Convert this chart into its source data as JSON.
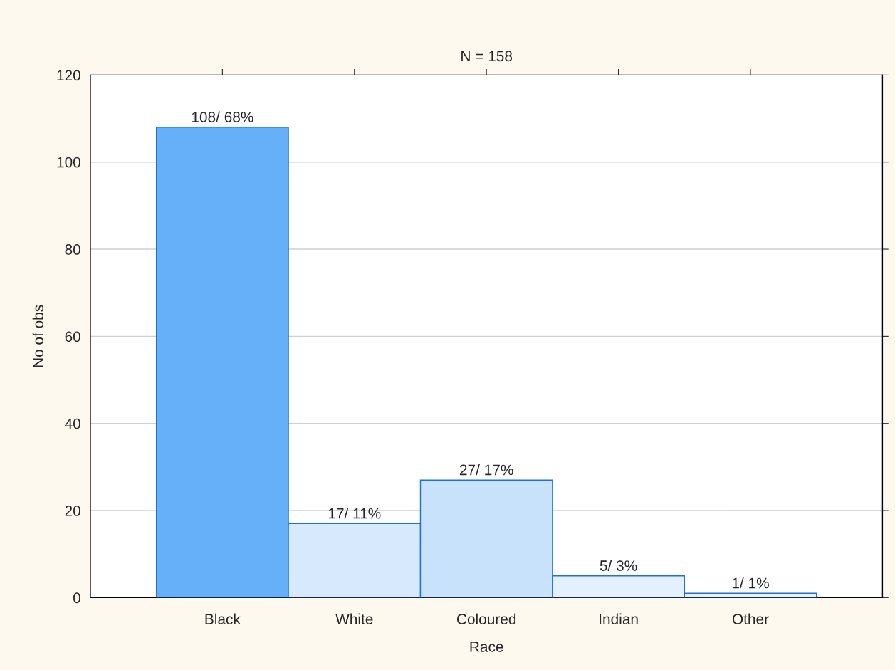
{
  "chart_data": {
    "type": "bar",
    "title": "N = 158",
    "xlabel": "Race",
    "ylabel": "No of obs",
    "categories": [
      "Black",
      "White",
      "Coloured",
      "Indian",
      "Other"
    ],
    "values": [
      108,
      17,
      27,
      5,
      1
    ],
    "value_labels": [
      "108/ 68%",
      "17/ 11%",
      "27/ 17%",
      "5/ 3%",
      "1/ 1%"
    ],
    "colors": [
      "#66b0fa",
      "#d6e9fd",
      "#c9e2fc",
      "#e3f0fe",
      "#e6f2fe"
    ],
    "ylim": [
      0,
      120
    ],
    "yticks": [
      0,
      20,
      40,
      60,
      80,
      100,
      120
    ],
    "grid": "y"
  }
}
